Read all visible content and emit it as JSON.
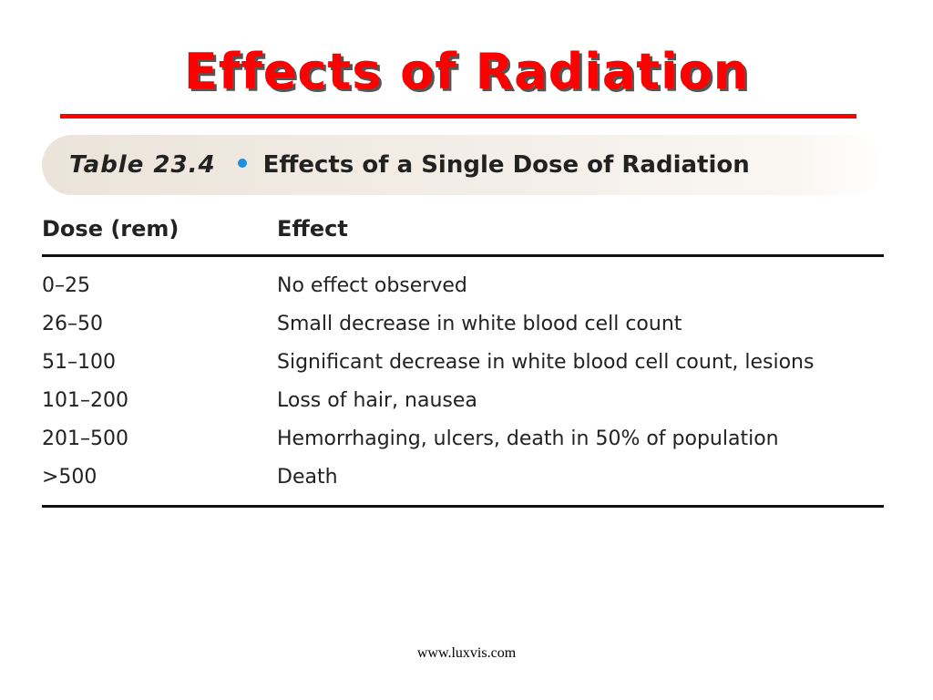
{
  "slide": {
    "title": "Effects of Radiation",
    "footer": "www.luxvis.com"
  },
  "colors": {
    "title": "#ff0000",
    "rule": "#ff0000",
    "bullet": "#1e8fe0"
  },
  "table": {
    "label": "Table 23.4",
    "caption": "Effects of a Single Dose of Radiation",
    "headers": [
      "Dose (rem)",
      "Effect"
    ],
    "rows": [
      [
        "0–25",
        "No effect observed"
      ],
      [
        "26–50",
        "Small decrease in white blood cell count"
      ],
      [
        "51–100",
        "Significant decrease in white blood cell count, lesions"
      ],
      [
        "101–200",
        "Loss of hair, nausea"
      ],
      [
        "201–500",
        "Hemorrhaging, ulcers, death in 50% of population"
      ],
      [
        ">500",
        "Death"
      ]
    ]
  }
}
